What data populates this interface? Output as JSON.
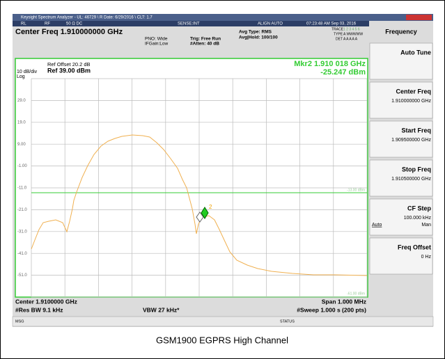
{
  "title_bar": {
    "text": "Keysight Spectrum Analyzer - UL: 46729 \\ R Date: 6/29/2016 \\ CLT: 1.7"
  },
  "status_row": {
    "rl": "RL",
    "rf": "RF",
    "coupling": "50 Ω  DC",
    "sense": "SENSE:INT",
    "align": "ALIGN AUTO",
    "time": "07:23:48 AM Sep 03, 2016"
  },
  "header": {
    "center_freq": "Center Freq 1.910000000 GHz",
    "pno": "PNO: Wide",
    "ifgain": "IFGain:Low",
    "trig": "Trig: Free Run",
    "atten": "#Atten: 40 dB",
    "avg_type": "Avg Type: RMS",
    "avg_hold": "Avg|Hold: 100/100",
    "trace": "TRACE",
    "trace_nums": "1 2 3 4 5 6",
    "type": "TYPE",
    "type_val": "A WWWWW",
    "det": "DET",
    "det_val": "A A A A A"
  },
  "plot": {
    "ref_offset": "Ref Offset 20.2 dB",
    "scale": "10 dB/div",
    "ref": "Ref 39.00 dBm",
    "log": "Log",
    "marker_freq": "Mkr2 1.910 018 GHz",
    "marker_level": "-25.247 dBm",
    "marker_id": "2",
    "limit_label": "-13.00 dBm",
    "bottom_label": "-61.00 dBm",
    "y_labels": [
      "29.0",
      "19.0",
      "9.00",
      "-1.00",
      "-11.0",
      "-21.0",
      "-31.0",
      "-41.0",
      "-51.0"
    ]
  },
  "footer": {
    "center": "Center 1.9100000 GHz",
    "rbw": "#Res BW 9.1 kHz",
    "vbw": "VBW 27 kHz*",
    "span": "Span 1.000 MHz",
    "sweep": "#Sweep  1.000 s (200 pts)",
    "msg": "MSG",
    "status": "STATUS"
  },
  "menu": {
    "title": "Frequency",
    "keys": [
      {
        "label": "Auto Tune"
      },
      {
        "label": "Center Freq",
        "value": "1.910000000 GHz"
      },
      {
        "label": "Start Freq",
        "value": "1.909500000 GHz"
      },
      {
        "label": "Stop Freq",
        "value": "1.910500000 GHz"
      },
      {
        "label": "CF Step",
        "value": "100.000 kHz",
        "auto": "Auto",
        "man": "Man"
      },
      {
        "label": "Freq Offset",
        "value": "0 Hz"
      }
    ]
  },
  "caption": "GSM1900 EGPRS High Channel"
}
